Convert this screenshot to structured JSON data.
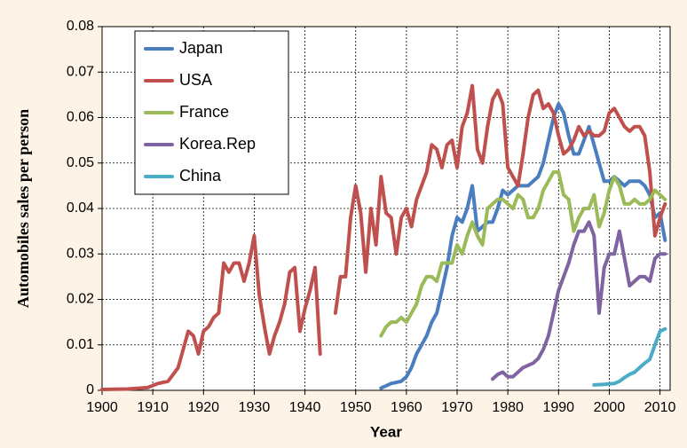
{
  "chart_data": {
    "type": "line",
    "xlabel": "Year",
    "ylabel": "Automobiles sales per person",
    "xlim": [
      1900,
      2012
    ],
    "ylim": [
      0,
      0.08
    ],
    "xticks": [
      1900,
      1910,
      1920,
      1930,
      1940,
      1950,
      1960,
      1970,
      1980,
      1990,
      2000,
      2010
    ],
    "yticks": [
      0,
      0.01,
      0.02,
      0.03,
      0.04,
      0.05,
      0.06,
      0.07,
      0.08
    ],
    "grid": true,
    "legend": "upper left",
    "series": [
      {
        "name": "Japan",
        "color": "#4a7ebf",
        "x": [
          1955,
          1957,
          1959,
          1960,
          1961,
          1962,
          1963,
          1964,
          1965,
          1966,
          1967,
          1968,
          1969,
          1970,
          1971,
          1972,
          1973,
          1974,
          1975,
          1976,
          1977,
          1978,
          1979,
          1980,
          1981,
          1982,
          1983,
          1984,
          1985,
          1986,
          1987,
          1988,
          1989,
          1990,
          1991,
          1992,
          1993,
          1994,
          1995,
          1996,
          1997,
          1998,
          1999,
          2000,
          2001,
          2002,
          2003,
          2004,
          2005,
          2006,
          2007,
          2008,
          2009,
          2010,
          2011
        ],
        "values": [
          0.0005,
          0.0015,
          0.002,
          0.003,
          0.005,
          0.008,
          0.01,
          0.012,
          0.015,
          0.017,
          0.022,
          0.027,
          0.034,
          0.038,
          0.037,
          0.04,
          0.045,
          0.035,
          0.036,
          0.037,
          0.037,
          0.04,
          0.044,
          0.043,
          0.044,
          0.045,
          0.045,
          0.045,
          0.046,
          0.047,
          0.05,
          0.055,
          0.06,
          0.063,
          0.061,
          0.056,
          0.052,
          0.052,
          0.055,
          0.058,
          0.054,
          0.05,
          0.046,
          0.046,
          0.047,
          0.046,
          0.045,
          0.046,
          0.046,
          0.046,
          0.045,
          0.043,
          0.038,
          0.039,
          0.033
        ]
      },
      {
        "name": "USA",
        "color": "#c0504d",
        "x": [
          1900,
          1905,
          1909,
          1911,
          1913,
          1915,
          1917,
          1918,
          1919,
          1920,
          1921,
          1922,
          1923,
          1924,
          1925,
          1926,
          1927,
          1928,
          1929,
          1930,
          1931,
          1932,
          1933,
          1934,
          1935,
          1936,
          1937,
          1938,
          1939,
          1940,
          1941,
          1942,
          1943,
          1944,
          1946,
          1947,
          1948,
          1949,
          1950,
          1951,
          1952,
          1953,
          1954,
          1955,
          1956,
          1957,
          1958,
          1959,
          1960,
          1961,
          1962,
          1963,
          1964,
          1965,
          1966,
          1967,
          1968,
          1969,
          1970,
          1971,
          1972,
          1973,
          1974,
          1975,
          1976,
          1977,
          1978,
          1979,
          1980,
          1981,
          1982,
          1983,
          1984,
          1985,
          1986,
          1987,
          1988,
          1989,
          1990,
          1991,
          1992,
          1993,
          1994,
          1995,
          1996,
          1997,
          1998,
          1999,
          2000,
          2001,
          2002,
          2003,
          2004,
          2005,
          2006,
          2007,
          2008,
          2009,
          2010,
          2011
        ],
        "values": [
          0.0002,
          0.0003,
          0.0006,
          0.0015,
          0.002,
          0.005,
          0.013,
          0.012,
          0.008,
          0.013,
          0.014,
          0.016,
          0.017,
          0.028,
          0.026,
          0.028,
          0.028,
          0.024,
          0.028,
          0.034,
          0.021,
          0.014,
          0.008,
          0.012,
          0.015,
          0.019,
          0.026,
          0.027,
          0.013,
          0.018,
          0.022,
          0.027,
          0.008,
          null,
          0.017,
          0.025,
          0.025,
          0.038,
          0.045,
          0.039,
          0.026,
          0.04,
          0.032,
          0.047,
          0.039,
          0.038,
          0.03,
          0.038,
          0.04,
          0.036,
          0.042,
          0.045,
          0.048,
          0.054,
          0.053,
          0.049,
          0.054,
          0.055,
          0.049,
          0.058,
          0.061,
          0.067,
          0.053,
          0.05,
          0.058,
          0.064,
          0.066,
          0.063,
          0.049,
          0.047,
          0.045,
          0.052,
          0.06,
          0.065,
          0.066,
          0.062,
          0.063,
          0.061,
          0.056,
          0.052,
          0.053,
          0.055,
          0.058,
          0.056,
          0.057,
          0.056,
          0.056,
          0.057,
          0.061,
          0.062,
          0.06,
          0.058,
          0.057,
          0.058,
          0.058,
          0.056,
          0.048,
          0.034,
          0.038,
          0.041
        ]
      },
      {
        "name": "France",
        "color": "#9bbb59",
        "x": [
          1955,
          1956,
          1957,
          1958,
          1959,
          1960,
          1961,
          1962,
          1963,
          1964,
          1965,
          1966,
          1967,
          1968,
          1969,
          1970,
          1971,
          1972,
          1973,
          1974,
          1975,
          1976,
          1977,
          1978,
          1979,
          1980,
          1981,
          1982,
          1983,
          1984,
          1985,
          1986,
          1987,
          1988,
          1989,
          1990,
          1991,
          1992,
          1993,
          1994,
          1995,
          1996,
          1997,
          1998,
          1999,
          2000,
          2001,
          2002,
          2003,
          2004,
          2005,
          2006,
          2007,
          2008,
          2009,
          2010,
          2011
        ],
        "values": [
          0.012,
          0.014,
          0.015,
          0.015,
          0.016,
          0.015,
          0.017,
          0.019,
          0.023,
          0.025,
          0.025,
          0.024,
          0.028,
          0.028,
          0.028,
          0.032,
          0.03,
          0.034,
          0.037,
          0.034,
          0.032,
          0.04,
          0.041,
          0.042,
          0.042,
          0.041,
          0.04,
          0.043,
          0.042,
          0.038,
          0.038,
          0.04,
          0.044,
          0.046,
          0.048,
          0.048,
          0.043,
          0.042,
          0.035,
          0.038,
          0.04,
          0.04,
          0.043,
          0.036,
          0.039,
          0.044,
          0.047,
          0.045,
          0.041,
          0.041,
          0.042,
          0.041,
          0.041,
          0.042,
          0.044,
          0.043,
          0.042
        ]
      },
      {
        "name": "Korea.Rep",
        "color": "#8064a2",
        "x": [
          1977,
          1978,
          1979,
          1980,
          1981,
          1982,
          1983,
          1984,
          1985,
          1986,
          1987,
          1988,
          1989,
          1990,
          1991,
          1992,
          1993,
          1994,
          1995,
          1996,
          1997,
          1998,
          1999,
          2000,
          2001,
          2002,
          2003,
          2004,
          2005,
          2006,
          2007,
          2008,
          2009,
          2010,
          2011
        ],
        "values": [
          0.0025,
          0.0035,
          0.004,
          0.003,
          0.003,
          0.004,
          0.005,
          0.0055,
          0.006,
          0.007,
          0.009,
          0.012,
          0.017,
          0.022,
          0.025,
          0.028,
          0.032,
          0.035,
          0.035,
          0.037,
          0.034,
          0.017,
          0.027,
          0.03,
          0.03,
          0.035,
          0.029,
          0.023,
          0.024,
          0.025,
          0.025,
          0.024,
          0.029,
          0.03,
          0.03
        ]
      },
      {
        "name": "China",
        "color": "#4bacc6",
        "x": [
          1997,
          1999,
          2001,
          2002,
          2003,
          2004,
          2005,
          2006,
          2007,
          2008,
          2009,
          2010,
          2011
        ],
        "values": [
          0.0012,
          0.0013,
          0.0015,
          0.002,
          0.0028,
          0.0035,
          0.004,
          0.005,
          0.006,
          0.0068,
          0.01,
          0.013,
          0.0135
        ]
      }
    ]
  }
}
